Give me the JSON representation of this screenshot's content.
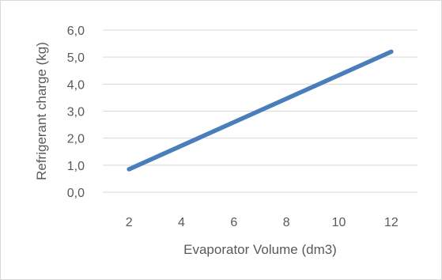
{
  "chart_data": {
    "type": "line",
    "x": [
      2,
      12
    ],
    "series": [
      {
        "values": [
          0.85,
          5.2
        ],
        "color": "#4a7ebb"
      }
    ],
    "xlabel": "Evaporator Volume (dm3)",
    "ylabel": "Refrigerant charge (kg)",
    "x_ticks": [
      "2",
      "4",
      "6",
      "8",
      "10",
      "12"
    ],
    "y_ticks": [
      "0,0",
      "1,0",
      "2,0",
      "3,0",
      "4,0",
      "5,0",
      "6,0"
    ],
    "xlim": [
      1,
      13
    ],
    "ylim": [
      0,
      6
    ],
    "grid": true,
    "legend": "none",
    "gridline_color": "#d9d9d9"
  }
}
